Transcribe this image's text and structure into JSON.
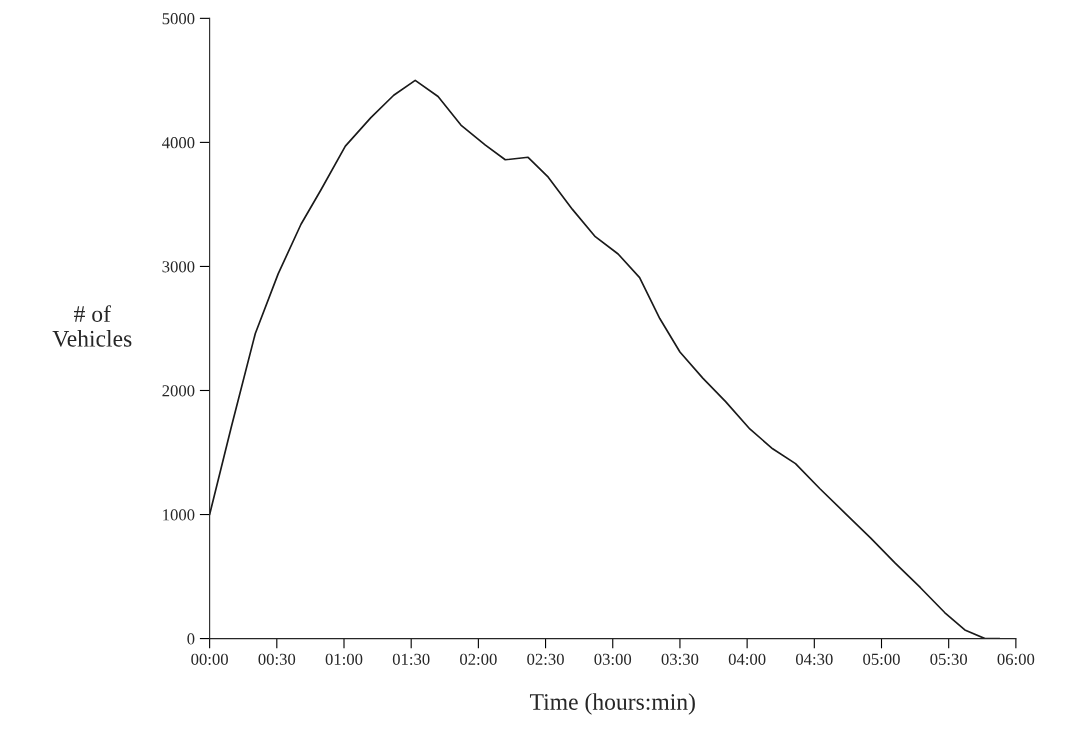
{
  "chart_data": {
    "type": "line",
    "xlabel": "Time (hours:min)",
    "ylabel": "# of\nVehicles",
    "x": [
      0,
      0.16,
      0.34,
      0.51,
      0.68,
      0.83,
      1.01,
      1.2,
      1.37,
      1.53,
      1.7,
      1.87,
      2.05,
      2.2,
      2.37,
      2.52,
      2.7,
      2.87,
      3.04,
      3.2,
      3.35,
      3.5,
      3.67,
      3.84,
      4.02,
      4.19,
      4.36,
      4.54,
      4.73,
      4.92,
      5.1,
      5.29,
      5.47,
      5.62,
      5.77,
      5.88
    ],
    "series": [
      {
        "color": "#1a1a1a",
        "values": [
          1000,
          1700,
          2460,
          2940,
          3340,
          3620,
          3970,
          4200,
          4380,
          4500,
          4370,
          4140,
          3980,
          3860,
          3880,
          3720,
          3460,
          3240,
          3100,
          2910,
          2580,
          2310,
          2100,
          1910,
          1690,
          1530,
          1410,
          1210,
          1010,
          810,
          610,
          410,
          210,
          70,
          0,
          0
        ]
      }
    ],
    "xlim": [
      0,
      6
    ],
    "xticks": [
      {
        "value": 0,
        "label": "00:00"
      },
      {
        "value": 0.5,
        "label": "00:30"
      },
      {
        "value": 1,
        "label": "01:00"
      },
      {
        "value": 1.5,
        "label": "01:30"
      },
      {
        "value": 2,
        "label": "02:00"
      },
      {
        "value": 2.5,
        "label": "02:30"
      },
      {
        "value": 3,
        "label": "03:00"
      },
      {
        "value": 3.5,
        "label": "03:30"
      },
      {
        "value": 4,
        "label": "04:00"
      },
      {
        "value": 4.5,
        "label": "04:30"
      },
      {
        "value": 5,
        "label": "05:00"
      },
      {
        "value": 5.5,
        "label": "05:30"
      },
      {
        "value": 6,
        "label": "06:00"
      }
    ],
    "ylim": [
      0,
      5000
    ],
    "yticks": [
      0,
      1000,
      2000,
      3000,
      4000,
      5000
    ],
    "grid": false,
    "marker": "none",
    "line_style": "solid"
  }
}
